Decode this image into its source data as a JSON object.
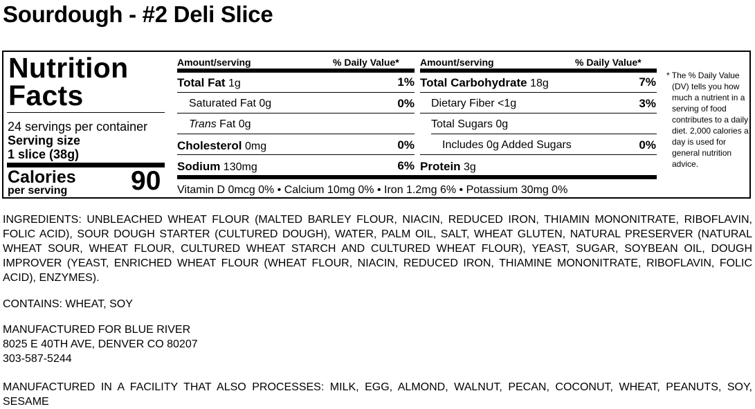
{
  "product": {
    "title": "Sourdough - #2 Deli Slice"
  },
  "nutrition": {
    "heading_line1": "Nutrition",
    "heading_line2": "Facts",
    "servings": "24 servings per container",
    "serving_size_label": "Serving size",
    "serving_size_value": "1 slice (38g)",
    "calories_label": "Calories",
    "per_serving": "per serving",
    "calories_value": "90",
    "amount_header": "Amount/serving",
    "dv_header": "% Daily Value*",
    "left_rows": [
      {
        "bold": "Total Fat",
        "amount": " 1g",
        "dv": "1%"
      },
      {
        "bold": "",
        "amount": "Saturated Fat 0g",
        "dv": "0%"
      },
      {
        "italic": "Trans",
        "amount": " Fat 0g",
        "dv": ""
      },
      {
        "bold": "Cholesterol",
        "amount": " 0mg",
        "dv": "0%"
      },
      {
        "bold": "Sodium",
        "amount": " 130mg",
        "dv": "6%"
      }
    ],
    "right_rows": [
      {
        "bold": "Total Carbohydrate",
        "amount": " 18g",
        "dv": "7%"
      },
      {
        "bold": "",
        "amount": "Dietary Fiber <1g",
        "dv": "3%"
      },
      {
        "bold": "",
        "amount": "Total Sugars 0g",
        "dv": ""
      },
      {
        "bold": "",
        "amount": "Includes 0g Added Sugars",
        "dv": "0%"
      },
      {
        "bold": "Protein",
        "amount": " 3g",
        "dv": ""
      }
    ],
    "vitamins": "Vitamin D 0mcg 0% • Calcium 10mg 0% • Iron 1.2mg 6% • Potassium 30mg 0%",
    "footnote": "* The % Daily Value (DV) tells you how much a nutrient in a serving of food contributes to a daily diet. 2,000 calories a day is used for general nutrition advice."
  },
  "ingredients": "INGREDIENTS: UNBLEACHED WHEAT FLOUR (MALTED BARLEY FLOUR, NIACIN, REDUCED IRON, THIAMIN MONONITRATE, RIBOFLAVIN, FOLIC ACID), SOUR DOUGH STARTER (CULTURED DOUGH), WATER, PALM OIL, SALT, WHEAT GLUTEN, NATURAL PRESERVER (NATURAL WHEAT SOUR, WHEAT FLOUR, CULTURED WHEAT STARCH AND CULTURED WHEAT FLOUR), YEAST, SUGAR, SOYBEAN OIL, DOUGH IMPROVER (YEAST, ENRICHED WHEAT FLOUR (WHEAT FLOUR, NIACIN, REDUCED IRON, THIAMINE MONONITRATE, RIBOFLAVIN, FOLIC ACID), ENZYMES).",
  "contains": "CONTAINS: WHEAT, SOY",
  "manufacturer": {
    "line1": "MANUFACTURED FOR BLUE RIVER",
    "line2": "8025 E 40TH AVE, DENVER CO 80207",
    "line3": "303-587-5244"
  },
  "facility": "MANUFACTURED IN A FACILITY THAT ALSO PROCESSES: MILK, EGG, ALMOND, WALNUT, PECAN, COCONUT, WHEAT, PEANUTS, SOY, SESAME"
}
